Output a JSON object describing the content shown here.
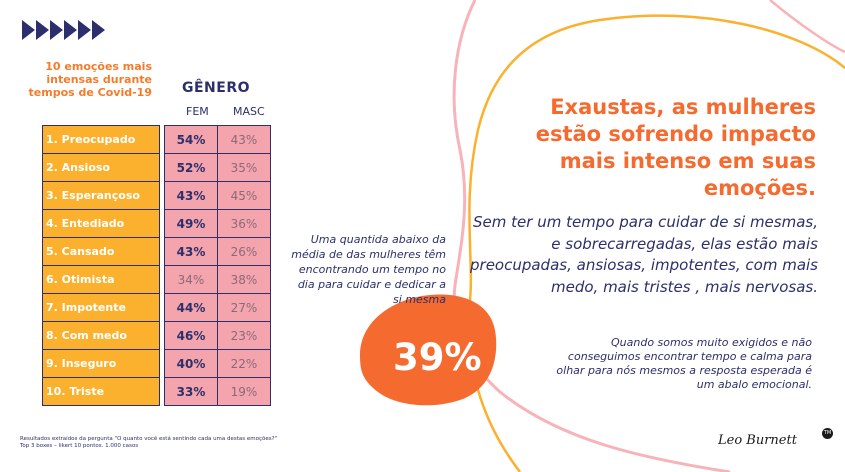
{
  "chart_title": "10 emoções mais intensas durante tempos de Covid-19",
  "gender_header": "GÊNERO",
  "col_fem": "FEM",
  "col_masc": "MASC",
  "chart_data": {
    "type": "table",
    "rows": [
      {
        "label": "1. Preocupado",
        "fem": "54%",
        "masc": "43%",
        "fem_bold": true
      },
      {
        "label": "2. Ansioso",
        "fem": "52%",
        "masc": "35%",
        "fem_bold": true
      },
      {
        "label": "3. Esperançoso",
        "fem": "43%",
        "masc": "45%",
        "fem_bold": true
      },
      {
        "label": "4. Entediado",
        "fem": "49%",
        "masc": "36%",
        "fem_bold": true
      },
      {
        "label": "5. Cansado",
        "fem": "43%",
        "masc": "26%",
        "fem_bold": true
      },
      {
        "label": "6. Otimista",
        "fem": "34%",
        "masc": "38%",
        "fem_bold": false
      },
      {
        "label": "7. Impotente",
        "fem": "44%",
        "masc": "27%",
        "fem_bold": true
      },
      {
        "label": "8. Com medo",
        "fem": "46%",
        "masc": "23%",
        "fem_bold": true
      },
      {
        "label": "9. Inseguro",
        "fem": "40%",
        "masc": "22%",
        "fem_bold": true
      },
      {
        "label": "10. Triste",
        "fem": "33%",
        "masc": "19%",
        "fem_bold": true
      }
    ]
  },
  "footnote": "Resultados extraídos da pergunta \"O quanto você está sentindo cada uma destas emoções?\" Top 3 boxes – likert 10 pontos. 1.000 casos",
  "blob_text": "Uma quantida abaixo da média de das mulheres têm encontrando um tempo no dia para cuidar e dedicar a si mesma",
  "blob_percent": "39%",
  "headline": "Exaustas, as mulheres estão sofrendo impacto mais intenso em suas emoções.",
  "subhead": "Sem ter um tempo para cuidar de si mesmas, e sobrecarregadas, elas estão mais preocupadas, ansiosas, impotentes, com mais medo, mais tristes , mais nervosas.",
  "quote": "Quando somos muito exigidos e não conseguimos encontrar tempo e calma para olhar para nós mesmos a resposta esperada é um abalo emocional.",
  "logo_text": "Leo Burnett",
  "colors": {
    "navy": "#2c2f6b",
    "orange": "#f57b2a",
    "yellow": "#fbb12e",
    "pink": "#f4a4ad",
    "blob": "#f56a2e"
  }
}
